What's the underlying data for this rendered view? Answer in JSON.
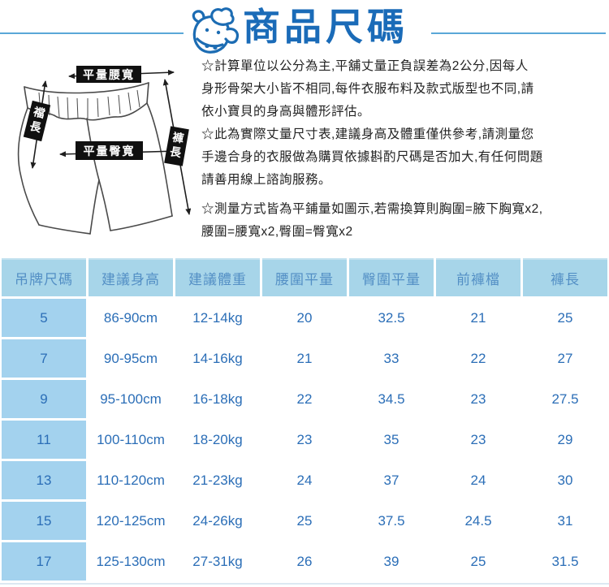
{
  "header": {
    "title": "商品尺碼"
  },
  "icons": {
    "cow": "cow-mascot"
  },
  "diagram": {
    "labels": {
      "waist": "平量腰寬",
      "hip": "平量臀寬",
      "crotch": "襠長",
      "length": "褲長"
    }
  },
  "notes": {
    "paragraphs": [
      [
        "☆計算單位以公分為主,平舖丈量正負誤差為2公分,因每人",
        "身形骨架大小皆不相同,每件衣服布料及款式版型也不同,請",
        "依小寶貝的身高與體形評估。"
      ],
      [
        "☆此為實際丈量尺寸表,建議身高及體重僅供參考,請測量您",
        "手邊合身的衣服做為購買依據斟酌尺碼是否加大,有任何問題",
        "請善用線上諮詢服務。"
      ],
      [
        "☆測量方式皆為平鋪量如圖示,若需換算則胸圍=腋下胸寬x2,",
        "腰圍=腰寬x2,臀圍=臀寬x2"
      ]
    ]
  },
  "size_table": {
    "columns": [
      "吊牌尺碼",
      "建議身高",
      "建議體重",
      "腰圍平量",
      "臀圍平量",
      "前褲檔",
      "褲長"
    ],
    "rows": [
      [
        "5",
        "86-90cm",
        "12-14kg",
        "20",
        "32.5",
        "21",
        "25"
      ],
      [
        "7",
        "90-95cm",
        "14-16kg",
        "21",
        "33",
        "22",
        "27"
      ],
      [
        "9",
        "95-100cm",
        "16-18kg",
        "22",
        "34.5",
        "23",
        "27.5"
      ],
      [
        "11",
        "100-110cm",
        "18-20kg",
        "23",
        "35",
        "23",
        "29"
      ],
      [
        "13",
        "110-120cm",
        "21-23kg",
        "24",
        "37",
        "24",
        "30"
      ],
      [
        "15",
        "120-125cm",
        "24-26kg",
        "25",
        "37.5",
        "24.5",
        "31"
      ],
      [
        "17",
        "125-130cm",
        "27-31kg",
        "26",
        "39",
        "25",
        "31.5"
      ]
    ]
  },
  "colors": {
    "title_blue": "#1a6bb8",
    "rule_blue": "#5aa7d8",
    "header_bg": "#a7d5e9",
    "header_text": "#538fc5",
    "cell_text": "#2b6eb7",
    "first_col_bg": "#a3d2ee",
    "diagram_label_bg": "#101010"
  }
}
